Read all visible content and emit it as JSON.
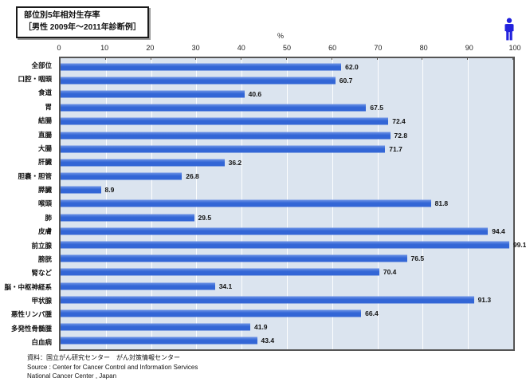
{
  "title_box": {
    "line1": "部位別5年相対生存率",
    "line2": "［男性 2009年～2011年診断例］"
  },
  "axis": {
    "unit_label": "%",
    "ticks": [
      0,
      10,
      20,
      30,
      40,
      50,
      60,
      70,
      80,
      90,
      100
    ]
  },
  "icons": {
    "male_pictogram": "male-figure-icon",
    "male_pictogram_color": "#2222dd"
  },
  "colors": {
    "bar": "#3366d6",
    "bar_highlight": "#6e94e6",
    "plot_background": "#dbe4ef",
    "plot_border": "#555555",
    "gridline": "#ffffff"
  },
  "chart_data": {
    "type": "bar",
    "orientation": "horizontal",
    "title": "部位別5年相対生存率（男性 2009年～2011年診断例）",
    "xlabel": "%",
    "xlim": [
      0,
      100
    ],
    "grid": "vertical-white",
    "value_labels": true,
    "categories": [
      "全部位",
      "口腔・咽頭",
      "食道",
      "胃",
      "結腸",
      "直腸",
      "大腸",
      "肝臓",
      "胆嚢・胆管",
      "膵臓",
      "喉頭",
      "肺",
      "皮膚",
      "前立腺",
      "膀胱",
      "腎など",
      "脳・中枢神経系",
      "甲状腺",
      "悪性リンパ腫",
      "多発性骨髄腫",
      "白血病"
    ],
    "values": [
      62.0,
      60.7,
      40.6,
      67.5,
      72.4,
      72.8,
      71.7,
      36.2,
      26.8,
      8.9,
      81.8,
      29.5,
      94.4,
      99.1,
      76.5,
      70.4,
      34.1,
      91.3,
      66.4,
      41.9,
      43.4
    ]
  },
  "footer": {
    "line1": "資料：国立がん研究センター　がん対策情報センター",
    "line2": "Source : Center for Cancer Control and Information Services",
    "line3": "National Cancer Center , Japan"
  }
}
